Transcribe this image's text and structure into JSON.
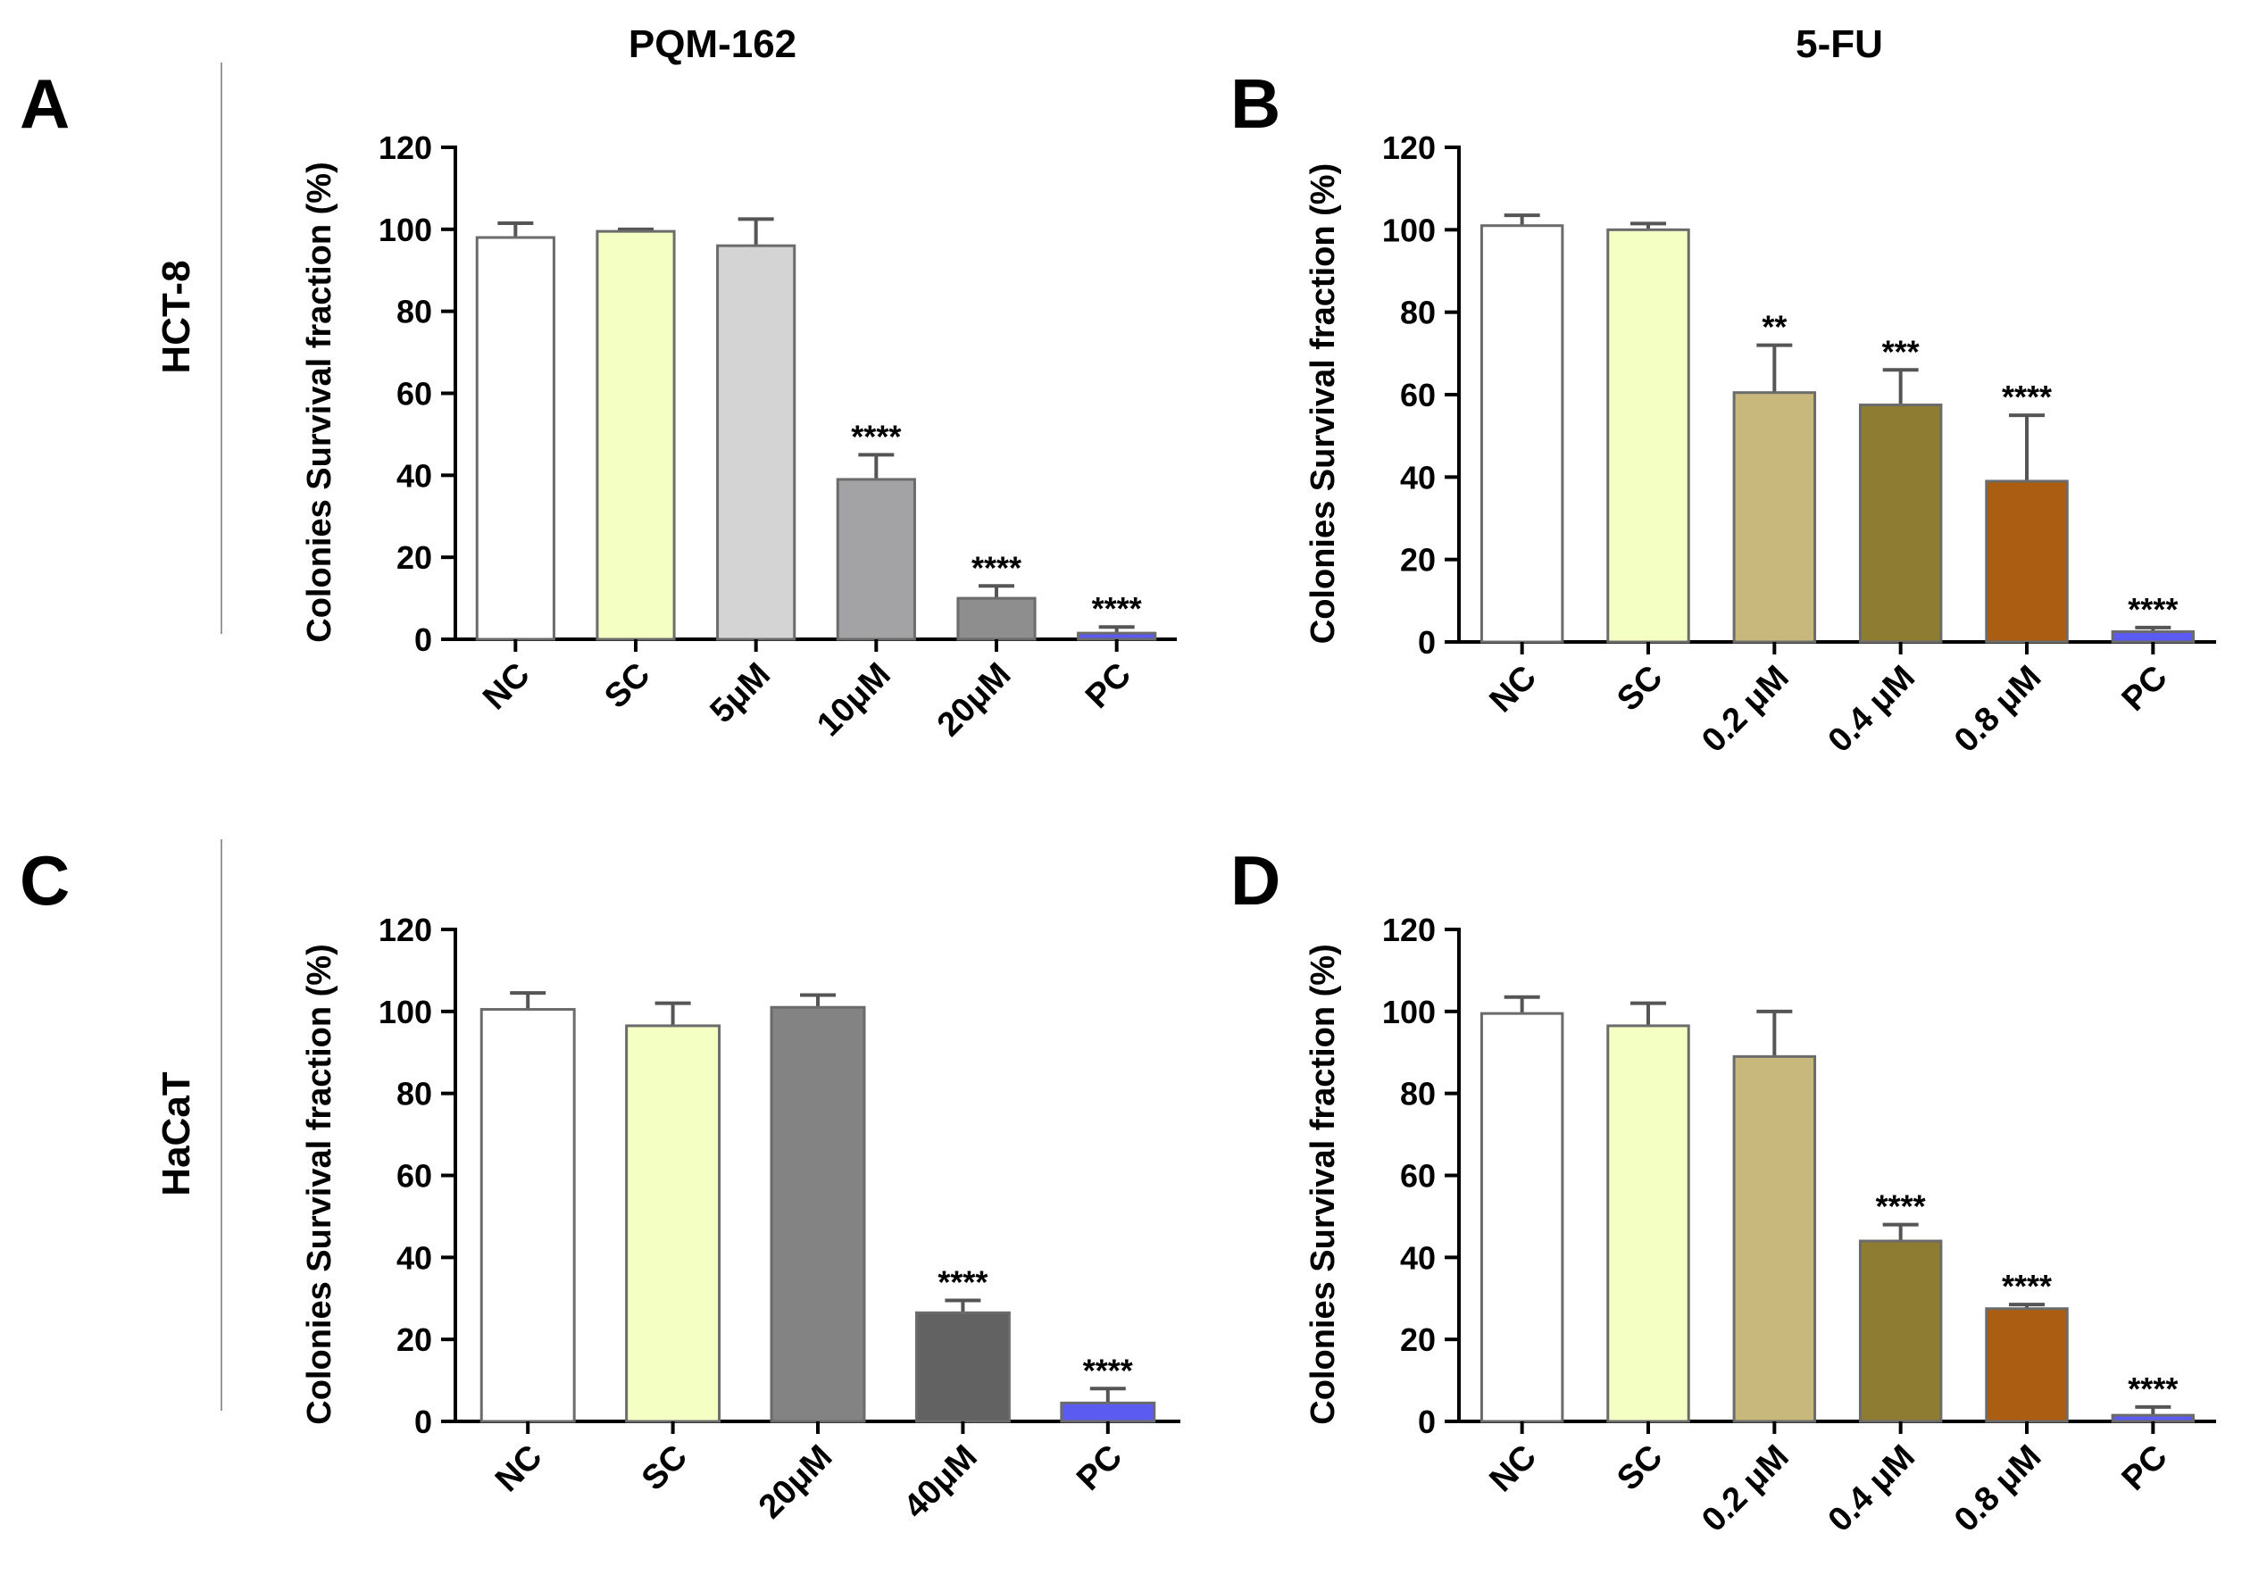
{
  "figure": {
    "column_titles": [
      "PQM-162",
      "5-FU"
    ],
    "row_labels": [
      "HCT-8",
      "HaCaT"
    ]
  },
  "chart_data": [
    {
      "panel": "A",
      "type": "bar",
      "cell_line": "HCT-8",
      "compound": "PQM-162",
      "ylabel": "Colonies Survival fraction (%)",
      "xlabel": "",
      "ylim": [
        0,
        120
      ],
      "yticks": [
        0,
        20,
        40,
        60,
        80,
        100,
        120
      ],
      "categories": [
        "NC",
        "SC",
        "5μM",
        "10μM",
        "20μM",
        "PC"
      ],
      "values": [
        98,
        99.5,
        96,
        39,
        10,
        1.5
      ],
      "errors": [
        3.5,
        0.5,
        6.5,
        6,
        3,
        1.5
      ],
      "significance": [
        "",
        "",
        "",
        "****",
        "****",
        "****"
      ],
      "colors": [
        "#ffffff",
        "#f4ffc4",
        "#d4d4d4",
        "#a3a3a5",
        "#8e8e8e",
        "#5b5bf2"
      ]
    },
    {
      "panel": "B",
      "type": "bar",
      "cell_line": "HCT-8",
      "compound": "5-FU",
      "ylabel": "Colonies Survival fraction (%)",
      "xlabel": "",
      "ylim": [
        0,
        120
      ],
      "yticks": [
        0,
        20,
        40,
        60,
        80,
        100,
        120
      ],
      "categories": [
        "NC",
        "SC",
        "0.2 μM",
        "0.4 μM",
        "0.8 μM",
        "PC"
      ],
      "values": [
        101,
        100,
        60.5,
        57.5,
        39,
        2.5
      ],
      "errors": [
        2.5,
        1.5,
        11.5,
        8.5,
        16,
        1
      ],
      "significance": [
        "",
        "",
        "**",
        "***",
        "****",
        "****"
      ],
      "colors": [
        "#ffffff",
        "#f4ffc4",
        "#c8b87c",
        "#8e7c33",
        "#ab5d12",
        "#5b5bf2"
      ]
    },
    {
      "panel": "C",
      "type": "bar",
      "cell_line": "HaCaT",
      "compound": "PQM-162",
      "ylabel": "Colonies Survival fraction (%)",
      "xlabel": "",
      "ylim": [
        0,
        120
      ],
      "yticks": [
        0,
        20,
        40,
        60,
        80,
        100,
        120
      ],
      "categories": [
        "NC",
        "SC",
        "20μM",
        "40μM",
        "PC"
      ],
      "values": [
        100.5,
        96.5,
        101,
        26.5,
        4.5
      ],
      "errors": [
        4,
        5.5,
        3,
        3,
        3.5
      ],
      "significance": [
        "",
        "",
        "",
        "****",
        "****"
      ],
      "colors": [
        "#ffffff",
        "#f4ffc4",
        "#838383",
        "#626262",
        "#5b5bf2"
      ]
    },
    {
      "panel": "D",
      "type": "bar",
      "cell_line": "HaCaT",
      "compound": "5-FU",
      "ylabel": "Colonies Survival fraction (%)",
      "xlabel": "",
      "ylim": [
        0,
        120
      ],
      "yticks": [
        0,
        20,
        40,
        60,
        80,
        100,
        120
      ],
      "categories": [
        "NC",
        "SC",
        "0.2 μM",
        "0.4 μM",
        "0.8 μM",
        "PC"
      ],
      "values": [
        99.5,
        96.5,
        89,
        44,
        27.5,
        1.5
      ],
      "errors": [
        4,
        5.5,
        11,
        4,
        1,
        2
      ],
      "significance": [
        "",
        "",
        "",
        "****",
        "****",
        "****"
      ],
      "colors": [
        "#ffffff",
        "#f4ffc4",
        "#c8b87c",
        "#8e7c33",
        "#ab5d12",
        "#5b5bf2"
      ]
    }
  ]
}
